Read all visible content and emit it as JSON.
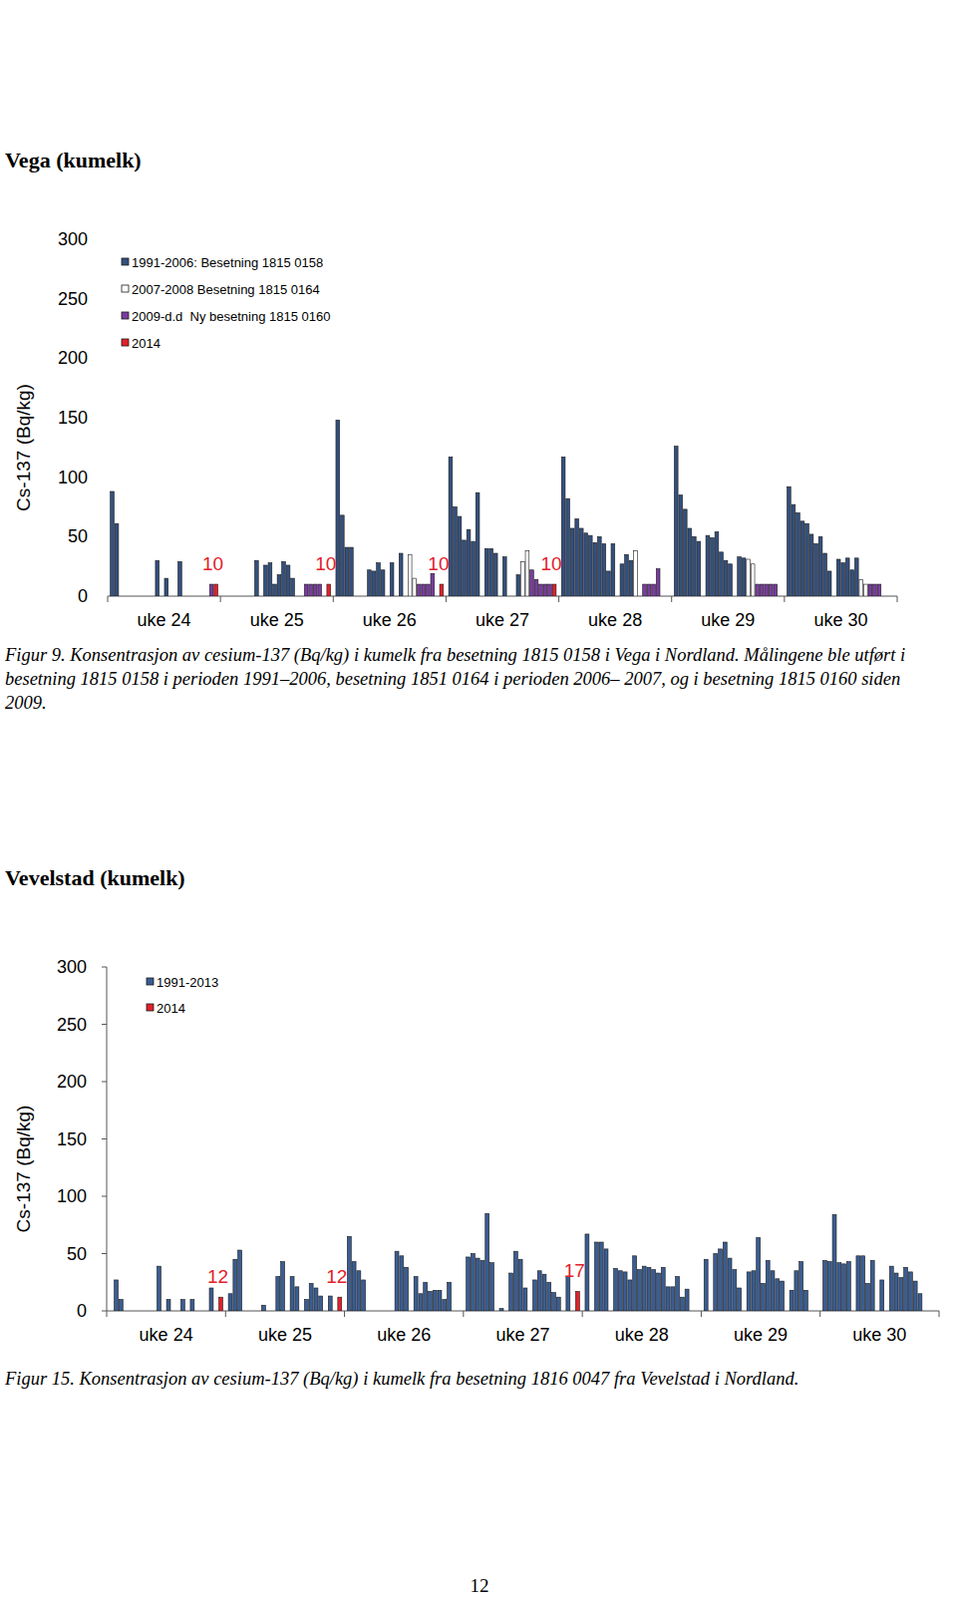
{
  "page_number": "12",
  "chart_data": [
    {
      "type": "bar",
      "title": "Vega (kumelk)",
      "ylabel": "Cs-137 (Bq/kg)",
      "caption": "Figur 9. Konsentrasjon av cesium-137 (Bq/kg) i kumelk fra besetning 1815 0158 i Vega i Nordland. Målingene ble utført i besetning 1815 0158 i perioden 1991–2006, besetning 1851 0164 i perioden 2006– 2007, og i besetning 1815 0160 siden 2009.",
      "categories": [
        "uke 24",
        "uke 25",
        "uke 26",
        "uke 27",
        "uke 28",
        "uke 29",
        "uke 30"
      ],
      "ylim": [
        0,
        300
      ],
      "yticks": [
        0,
        50,
        100,
        150,
        200,
        250,
        300
      ],
      "legend": "top-left",
      "series": [
        {
          "name": "1991-2006: Besetning 1815 0158",
          "color": "#33507e",
          "values": [
            [
              88,
              61,
              null,
              null,
              null,
              null,
              null,
              null,
              null,
              null,
              30,
              null,
              15,
              null,
              null,
              29
            ],
            [
              null,
              null,
              null,
              null,
              null,
              null,
              null,
              30,
              null,
              26,
              28,
              10,
              18,
              29,
              26,
              15
            ],
            [
              148,
              68,
              41,
              41,
              null,
              null,
              null,
              22,
              21,
              28,
              22,
              null,
              28,
              null,
              36,
              null
            ],
            [
              117,
              75,
              67,
              47,
              56,
              46,
              87,
              null,
              40,
              40,
              36,
              null,
              33,
              null,
              null,
              18
            ],
            [
              117,
              82,
              57,
              65,
              57,
              53,
              51,
              45,
              50,
              44,
              21,
              44,
              null,
              27,
              35,
              30
            ],
            [
              126,
              85,
              73,
              57,
              50,
              46,
              null,
              51,
              49,
              54,
              37,
              30,
              27,
              null,
              33,
              32
            ],
            [
              92,
              77,
              70,
              63,
              61,
              52,
              44,
              50,
              36,
              21,
              null,
              31,
              28,
              32,
              22,
              32
            ]
          ]
        },
        {
          "name": "2007-2008 Besetning 1815 0164",
          "color": "#ffffff",
          "values": [
            [
              null,
              null
            ],
            [
              null,
              null
            ],
            [
              35,
              15
            ],
            [
              29,
              38
            ],
            [
              38,
              null
            ],
            [
              31,
              27
            ],
            [
              14,
              10
            ]
          ]
        },
        {
          "name": "2009-d.d  Ny besetning 1815 0160",
          "color": "#7a3c9e",
          "values": [
            [
              null,
              null,
              null,
              null,
              10
            ],
            [
              10,
              10,
              10,
              10,
              null
            ],
            [
              10,
              10,
              10,
              19,
              null
            ],
            [
              22,
              14,
              10,
              10,
              10
            ],
            [
              10,
              10,
              10,
              23,
              null
            ],
            [
              10,
              10,
              10,
              10,
              10
            ],
            [
              10,
              10,
              10,
              null,
              null
            ]
          ]
        },
        {
          "name": "2014",
          "color": "#e3202a",
          "data_labels": true,
          "values": [
            [
              10
            ],
            [
              10
            ],
            [
              10
            ],
            [
              10
            ],
            [
              null
            ],
            [
              null
            ],
            [
              null
            ]
          ]
        }
      ]
    },
    {
      "type": "bar",
      "title": "Vevelstad (kumelk)",
      "ylabel": "Cs-137 (Bq/kg)",
      "caption": "Figur 15. Konsentrasjon av cesium-137 (Bq/kg) i kumelk fra besetning 1816 0047 fra Vevelstad i Nordland.",
      "categories": [
        "uke 24",
        "uke 25",
        "uke 26",
        "uke 27",
        "uke 28",
        "uke 29",
        "uke 30"
      ],
      "ylim": [
        0,
        300
      ],
      "yticks": [
        0,
        50,
        100,
        150,
        200,
        250,
        300
      ],
      "legend": "top-left",
      "series": [
        {
          "name": "1991-2013",
          "color": "#3a5d92",
          "values": [
            [
              null,
              27,
              10,
              null,
              null,
              null,
              null,
              null,
              null,
              null,
              39,
              null,
              10,
              null,
              null,
              10,
              null,
              10,
              null,
              null,
              null,
              20,
              null
            ],
            [
              15,
              45,
              53,
              null,
              null,
              null,
              null,
              5,
              null,
              null,
              30,
              43,
              null,
              30,
              21,
              null,
              10,
              24,
              20,
              13,
              null,
              13,
              null
            ],
            [
              65,
              43,
              35,
              27,
              null,
              null,
              null,
              null,
              null,
              null,
              52,
              48,
              38,
              null,
              30,
              15,
              25,
              17,
              18,
              18,
              10,
              25,
              null
            ],
            [
              47,
              50,
              46,
              44,
              85,
              42,
              null,
              2,
              null,
              33,
              52,
              45,
              20,
              null,
              27,
              35,
              32,
              25,
              16,
              12,
              null,
              30,
              null
            ],
            [
              67,
              null,
              60,
              60,
              54,
              null,
              37,
              35,
              34,
              27,
              48,
              36,
              39,
              38,
              36,
              33,
              38,
              21,
              21,
              30,
              12,
              19,
              null
            ],
            [
              45,
              null,
              50,
              54,
              60,
              46,
              36,
              20,
              null,
              34,
              35,
              64,
              24,
              44,
              35,
              28,
              26,
              null,
              18,
              35,
              43,
              18,
              null
            ],
            [
              44,
              43,
              84,
              42,
              41,
              43,
              null,
              48,
              48,
              24,
              44,
              null,
              27,
              null,
              39,
              33,
              29,
              38,
              34,
              26,
              15,
              null,
              null
            ]
          ]
        },
        {
          "name": "2014",
          "color": "#e3202a",
          "data_labels": true,
          "values": [
            [
              12
            ],
            [
              12
            ],
            [
              null
            ],
            [
              17
            ],
            [
              null
            ],
            [
              null
            ],
            [
              null
            ]
          ]
        }
      ]
    }
  ]
}
